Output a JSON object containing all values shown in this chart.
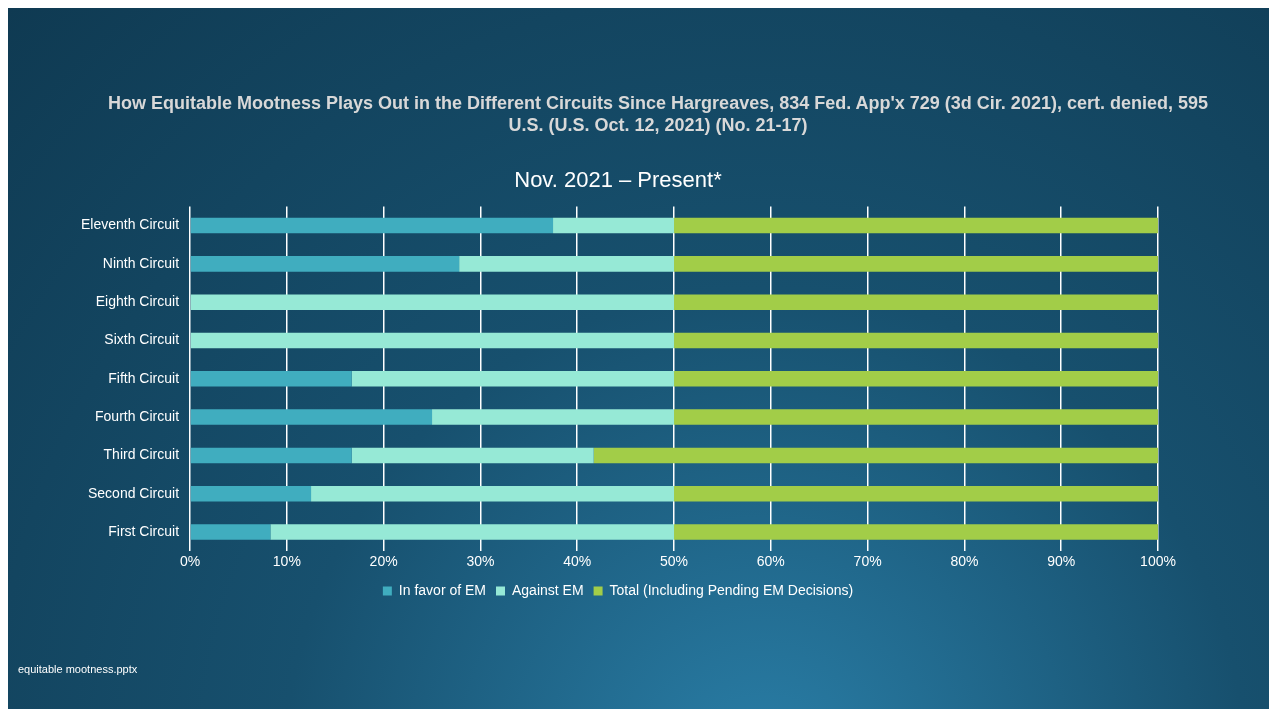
{
  "chart_data": {
    "type": "bar",
    "orientation": "horizontal",
    "stacked": true,
    "title": "How Equitable Mootness Plays Out in the Different Circuits Since Hargreaves, 834 Fed. App'x 729 (3d Cir. 2021), cert. denied, 595 U.S. (U.S. Oct. 12, 2021) (No. 21-17)",
    "subtitle": "Nov. 2021 – Present*",
    "categories": [
      "Eleventh Circuit",
      "Ninth Circuit",
      "Eighth Circuit",
      "Sixth Circuit",
      "Fifth Circuit",
      "Fourth Circuit",
      "Third Circuit",
      "Second Circuit",
      "First Circuit"
    ],
    "series": [
      {
        "name": "In favor of EM",
        "color": "#40adbf",
        "values": [
          37.5,
          27.8,
          0,
          0,
          16.7,
          25,
          16.7,
          12.5,
          8.3
        ]
      },
      {
        "name": "Against EM",
        "color": "#96e9d6",
        "values": [
          12.5,
          22.2,
          50,
          50,
          33.3,
          25,
          25,
          37.5,
          41.7
        ]
      },
      {
        "name": "Total (Including Pending EM Decisions)",
        "color": "#a2cd48",
        "values": [
          50,
          50,
          50,
          50,
          50,
          50,
          58.3,
          50,
          50
        ]
      }
    ],
    "xlim": [
      0,
      100
    ],
    "xticks": [
      {
        "value": 0,
        "label": "0%"
      },
      {
        "value": 10,
        "label": "10%"
      },
      {
        "value": 20,
        "label": "20%"
      },
      {
        "value": 30,
        "label": "30%"
      },
      {
        "value": 40,
        "label": "40%"
      },
      {
        "value": 50,
        "label": "50%"
      },
      {
        "value": 60,
        "label": "60%"
      },
      {
        "value": 70,
        "label": "70%"
      },
      {
        "value": 80,
        "label": "80%"
      },
      {
        "value": 90,
        "label": "90%"
      },
      {
        "value": 100,
        "label": "100%"
      }
    ],
    "grid": "x",
    "legend": "bottom",
    "annotations": [
      "equitable mootness.pptx"
    ]
  }
}
